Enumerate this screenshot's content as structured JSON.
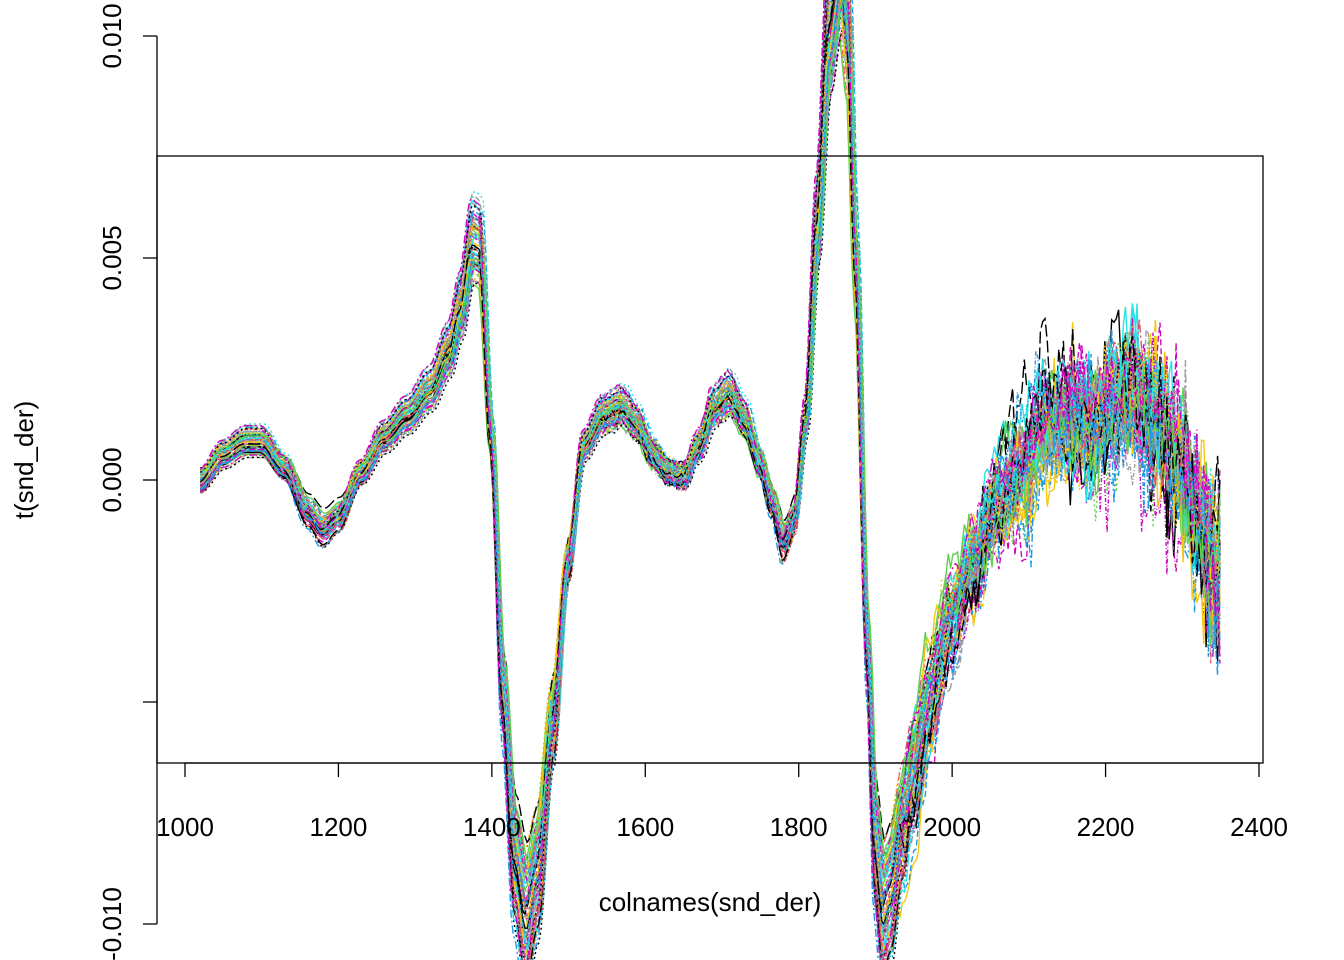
{
  "chart_data": {
    "type": "line",
    "xlabel": "colnames(snd_der)",
    "ylabel": "t(snd_der)",
    "xlim": [
      1000,
      2400
    ],
    "ylim": [
      -0.0126,
      0.0145
    ],
    "x_ticks": [
      {
        "value": 1000,
        "label": "1000"
      },
      {
        "value": 1200,
        "label": "1200"
      },
      {
        "value": 1400,
        "label": "1400"
      },
      {
        "value": 1600,
        "label": "1600"
      },
      {
        "value": 1800,
        "label": "1800"
      },
      {
        "value": 2000,
        "label": "2000"
      },
      {
        "value": 2200,
        "label": "2200"
      },
      {
        "value": 2400,
        "label": "2400"
      }
    ],
    "y_ticks": [
      {
        "value": -0.01,
        "label": "-0.010"
      },
      {
        "value": -0.005,
        "label": ""
      },
      {
        "value": 0.0,
        "label": "0.000"
      },
      {
        "value": 0.005,
        "label": "0.005"
      },
      {
        "value": 0.01,
        "label": "0.010"
      }
    ],
    "grid": false,
    "legend": "none",
    "series_colors": [
      "#000000",
      "#DF536B",
      "#61D04F",
      "#2297E6",
      "#28E2E5",
      "#CD0BBC",
      "#F5C710",
      "#9E9E9E"
    ],
    "representative_profile": {
      "x": [
        1020,
        1050,
        1080,
        1100,
        1130,
        1160,
        1180,
        1200,
        1230,
        1260,
        1290,
        1320,
        1345,
        1360,
        1375,
        1385,
        1400,
        1415,
        1430,
        1445,
        1460,
        1480,
        1500,
        1520,
        1545,
        1570,
        1590,
        1610,
        1630,
        1650,
        1670,
        1690,
        1710,
        1730,
        1750,
        1765,
        1780,
        1795,
        1810,
        1825,
        1840,
        1855,
        1865,
        1875,
        1890,
        1900,
        1910,
        1920,
        1935,
        1950,
        1970,
        2000,
        2030,
        2060,
        2090,
        2120,
        2150,
        2180,
        2210,
        2240,
        2270,
        2300,
        2320,
        2340,
        2350
      ],
      "y": [
        0.0,
        0.0006,
        0.0009,
        0.0009,
        0.0003,
        -0.0007,
        -0.0011,
        -0.0008,
        0.0002,
        0.001,
        0.0015,
        0.0021,
        0.003,
        0.004,
        0.0055,
        0.0054,
        0.001,
        -0.005,
        -0.0088,
        -0.0101,
        -0.009,
        -0.0055,
        -0.0018,
        0.0008,
        0.0015,
        0.0017,
        0.0013,
        0.0006,
        0.0002,
        0.0001,
        0.0008,
        0.0017,
        0.002,
        0.0014,
        0.0004,
        -0.0005,
        -0.0014,
        -0.0008,
        0.0015,
        0.006,
        0.0105,
        0.0122,
        0.0105,
        0.005,
        -0.004,
        -0.0085,
        -0.01,
        -0.0095,
        -0.008,
        -0.0068,
        -0.0052,
        -0.0032,
        -0.0018,
        -0.0005,
        0.0002,
        0.0013,
        0.0015,
        0.0012,
        0.0018,
        0.002,
        0.0014,
        0.0003,
        -0.001,
        -0.0018,
        -0.0022
      ]
    },
    "spectra_count": 70
  }
}
